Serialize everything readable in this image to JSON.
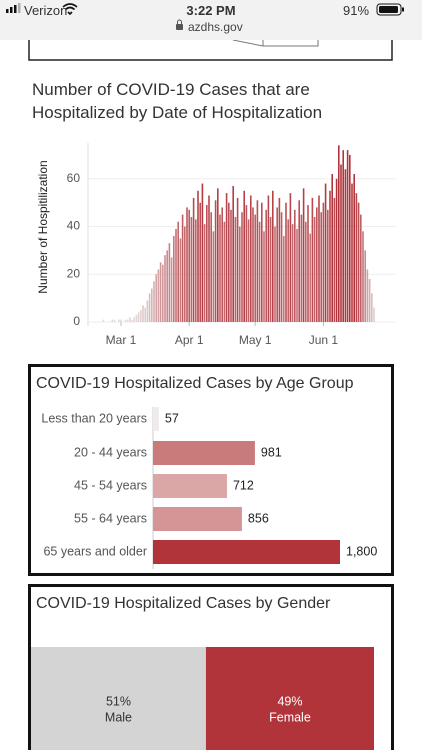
{
  "status_bar": {
    "carrier": "Verizon",
    "time": "3:22 PM",
    "url": "azdhs.gov",
    "battery": "91%"
  },
  "chart_data": [
    {
      "type": "bar",
      "title": "Number of COVID-19 Cases that are Hospitalized by Date of Hospitalization",
      "y_label": "Number of Hospitilization",
      "categories": [
        null,
        null,
        null,
        null,
        null,
        null,
        null,
        null,
        null,
        null,
        "Mar 1",
        null,
        null,
        null,
        null,
        null,
        null,
        null,
        null,
        null,
        null,
        null,
        null,
        null,
        null,
        null,
        null,
        null,
        null,
        null,
        null,
        null,
        null,
        null,
        null,
        null,
        null,
        null,
        null,
        null,
        null,
        "Apr 1",
        null,
        null,
        null,
        null,
        null,
        null,
        null,
        null,
        null,
        null,
        null,
        null,
        null,
        null,
        null,
        null,
        null,
        null,
        null,
        null,
        null,
        null,
        null,
        null,
        null,
        null,
        null,
        null,
        null,
        "May 1",
        null,
        null,
        null,
        null,
        null,
        null,
        null,
        null,
        null,
        null,
        null,
        null,
        null,
        null,
        null,
        null,
        null,
        null,
        null,
        null,
        null,
        null,
        null,
        null,
        null,
        null,
        null,
        null,
        null,
        null,
        "Jun 1",
        null,
        null,
        null,
        null,
        null,
        null,
        null,
        null,
        null,
        null,
        null,
        null,
        null,
        null,
        null,
        null,
        null,
        null,
        null,
        null,
        null,
        null,
        null
      ],
      "values": [
        0,
        0,
        1,
        0,
        0,
        0,
        1,
        1,
        0,
        1,
        1,
        0,
        1,
        1,
        2,
        1,
        2,
        3,
        4,
        5,
        7,
        6,
        9,
        12,
        14,
        17,
        20,
        22,
        25,
        24,
        28,
        30,
        33,
        27,
        36,
        39,
        42,
        35,
        45,
        40,
        48,
        47,
        44,
        52,
        43,
        55,
        50,
        58,
        41,
        49,
        53,
        46,
        38,
        51,
        56,
        45,
        48,
        42,
        54,
        50,
        47,
        57,
        44,
        52,
        40,
        46,
        55,
        49,
        43,
        53,
        48,
        45,
        51,
        42,
        50,
        38,
        47,
        53,
        44,
        55,
        40,
        48,
        52,
        46,
        36,
        50,
        43,
        54,
        41,
        47,
        39,
        51,
        45,
        56,
        42,
        49,
        37,
        52,
        44,
        48,
        53,
        46,
        50,
        58,
        47,
        55,
        62,
        52,
        60,
        74,
        66,
        72,
        64,
        72,
        70,
        58,
        62,
        54,
        50,
        45,
        38,
        30,
        22,
        18,
        12,
        6
      ],
      "color_scale": [
        "#e4dede",
        "#b2343b"
      ],
      "ylim": [
        0,
        75
      ],
      "yticks": [
        0,
        20,
        40,
        60
      ],
      "grid": true
    },
    {
      "type": "hbar",
      "title": "COVID-19 Hospitalized Cases by Age Group",
      "categories": [
        "Less than 20 years",
        "20 - 44 years",
        "45 - 54 years",
        "55 - 64 years",
        "65 years and older"
      ],
      "values": [
        57,
        981,
        712,
        856,
        1800
      ],
      "value_labels": [
        "57",
        "981",
        "712",
        "856",
        "1,800"
      ],
      "colors": [
        "#f0eaea",
        "#c97a7a",
        "#dba6a6",
        "#d39595",
        "#b2343b"
      ]
    },
    {
      "type": "stacked_bar",
      "title": "COVID-19 Hospitalized Cases by Gender",
      "categories": [
        "Male",
        "Female"
      ],
      "values": [
        51,
        49
      ],
      "value_labels": [
        "51%",
        "49%"
      ],
      "colors": [
        "#d4d4d4",
        "#b2343b"
      ],
      "text_colors": [
        "#333333",
        "#ffffff"
      ]
    }
  ]
}
